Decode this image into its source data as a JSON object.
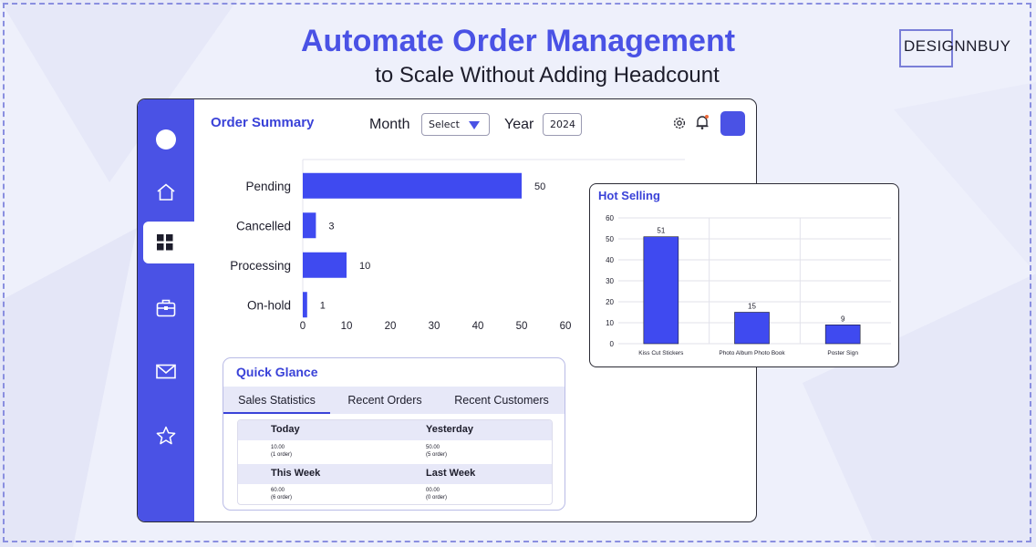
{
  "header": {
    "title": "Automate Order Management",
    "subtitle": "to Scale Without Adding Headcount",
    "brand": "DESIGNNBUY"
  },
  "colors": {
    "accent": "#4a52e5",
    "bar": "#3f4af0",
    "text": "#1d1d2b"
  },
  "sidebar": {
    "items": [
      {
        "icon": "home-icon"
      },
      {
        "icon": "dashboard-grid-icon",
        "active": true
      },
      {
        "icon": "briefcase-icon"
      },
      {
        "icon": "mail-icon"
      },
      {
        "icon": "star-icon"
      }
    ]
  },
  "order_summary": {
    "title": "Order Summary",
    "month_label": "Month",
    "month_value": "Select",
    "year_label": "Year",
    "year_value": "2024",
    "top_icons": [
      "settings-icon",
      "bell-icon",
      "profile-avatar"
    ]
  },
  "quick_glance": {
    "title": "Quick Glance",
    "tabs": [
      {
        "label": "Sales Statistics",
        "active": true
      },
      {
        "label": "Recent Orders"
      },
      {
        "label": "Recent Customers"
      }
    ],
    "rows": [
      {
        "left": {
          "label": "Today",
          "value": "10.00",
          "note": "(1 order)"
        },
        "right": {
          "label": "Yesterday",
          "value": "50.00",
          "note": "(5 order)"
        }
      },
      {
        "left": {
          "label": "This Week",
          "value": "60.00",
          "note": "(6 order)"
        },
        "right": {
          "label": "Last Week",
          "value": "00.00",
          "note": "(0 order)"
        }
      }
    ]
  },
  "hot_selling": {
    "title": "Hot Selling"
  },
  "chart_data": [
    {
      "type": "bar",
      "orientation": "horizontal",
      "categories": [
        "Pending",
        "Cancelled",
        "Processing",
        "On-hold"
      ],
      "values": [
        50,
        3,
        10,
        1
      ],
      "xlim": [
        0,
        60
      ],
      "xticks": [
        0,
        10,
        20,
        30,
        40,
        50,
        60
      ],
      "grid": false,
      "data_labels": true
    },
    {
      "type": "bar",
      "categories": [
        "Kiss Cut Stickers",
        "Photo Album Photo Book",
        "Poster Sign"
      ],
      "values": [
        51,
        15,
        9
      ],
      "ylim": [
        0,
        60
      ],
      "yticks": [
        0,
        10,
        20,
        30,
        40,
        50,
        60
      ],
      "grid": true,
      "data_labels": true
    }
  ]
}
